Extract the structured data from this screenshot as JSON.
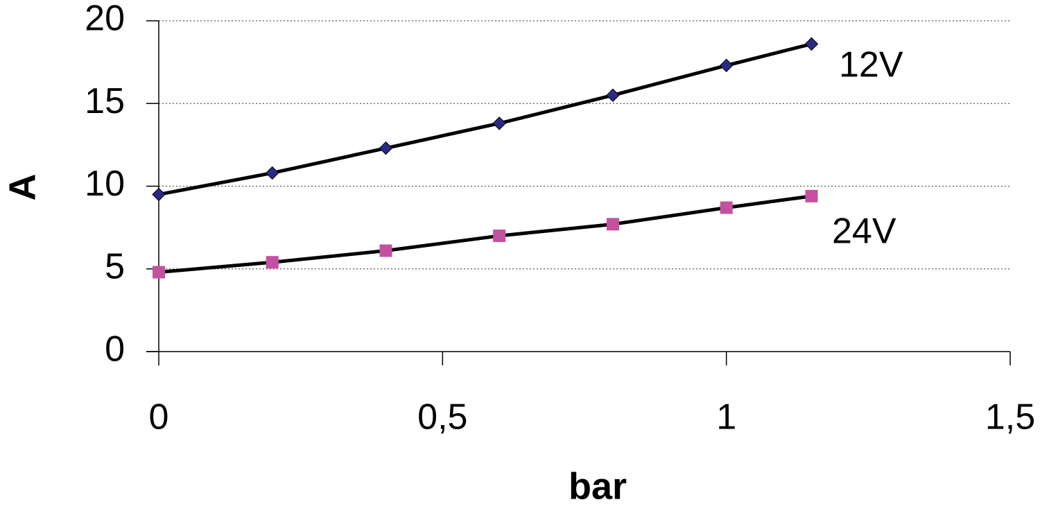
{
  "chart_data": {
    "type": "scatter",
    "x_label": "bar",
    "y_label": "A",
    "xlim": [
      0,
      1.5
    ],
    "xticks": [
      0,
      {
        "value": 0.5,
        "label": "0,5"
      },
      1,
      {
        "value": 1.5,
        "label": "1,5"
      }
    ],
    "ylim": [
      0,
      20
    ],
    "yticks": [
      0,
      5,
      10,
      15,
      20
    ],
    "grid": true,
    "line_color": "#000000",
    "series": [
      {
        "name": "12V",
        "color": "#2a2a86",
        "marker": "diamond",
        "x": [
          0,
          0.2,
          0.4,
          0.6,
          0.8,
          1.0,
          1.15
        ],
        "values": [
          9.5,
          10.8,
          12.3,
          13.8,
          15.5,
          17.3,
          18.6
        ]
      },
      {
        "name": "24V",
        "color": "#c450a0",
        "marker": "square",
        "x": [
          0,
          0.2,
          0.4,
          0.6,
          0.8,
          1.0,
          1.15
        ],
        "values": [
          4.8,
          5.4,
          6.1,
          7.0,
          7.7,
          8.7,
          9.4
        ]
      }
    ]
  }
}
